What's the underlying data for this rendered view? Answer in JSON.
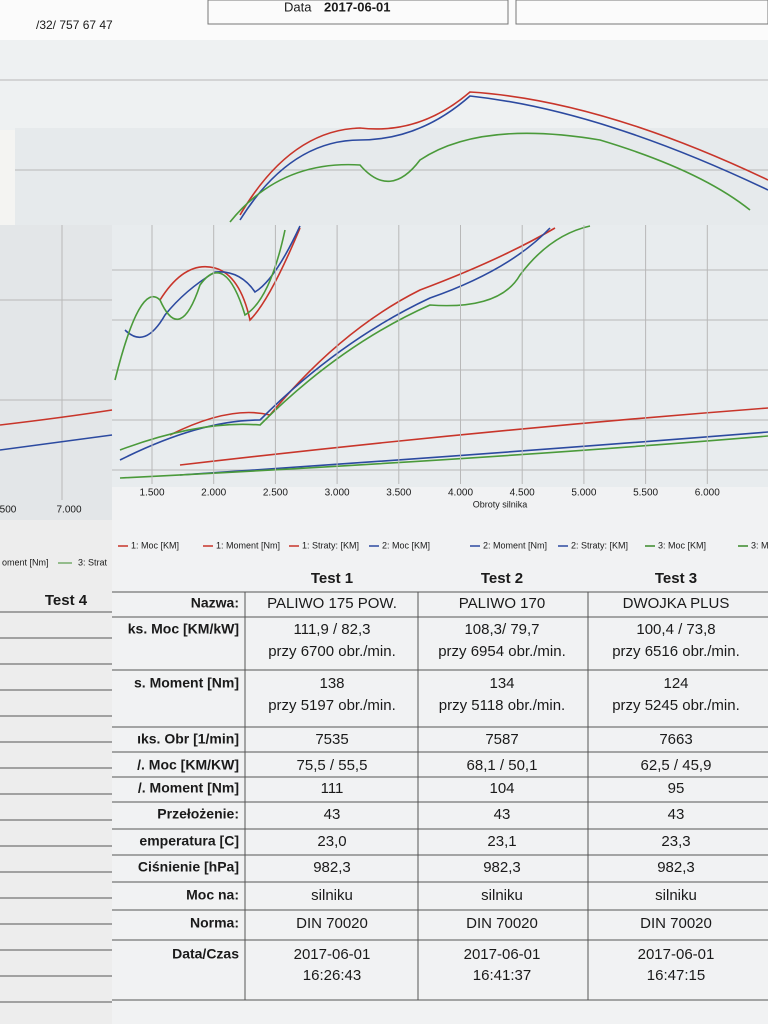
{
  "header": {
    "phone": "/32/ 757 67 47",
    "date_label": "Data",
    "date": "2017-06-01"
  },
  "chart": {
    "x_ticks": [
      "1.500",
      "2.000",
      "2.500",
      "3.000",
      "3.500",
      "4.000",
      "4.500",
      "5.000",
      "5.500",
      "6.000"
    ],
    "left_ticks": [
      "500",
      "7.000"
    ],
    "x_label": "Obroty silnika",
    "legend": [
      {
        "text": "1: Moc [KM]",
        "color": "#c8352a"
      },
      {
        "text": "1: Moment [Nm]",
        "color": "#c8352a"
      },
      {
        "text": "1: Straty: [KM]",
        "color": "#c8352a"
      },
      {
        "text": "2: Moc [KM]",
        "color": "#2c4aa0"
      },
      {
        "text": "2: Moment [Nm]",
        "color": "#2c4aa0"
      },
      {
        "text": "2: Straty: [KM]",
        "color": "#2c4aa0"
      },
      {
        "text": "3: Moc [KM]",
        "color": "#3a8a2a"
      },
      {
        "text": "3: M",
        "color": "#3a8a2a"
      }
    ],
    "left_legend": [
      "oment [Nm]",
      "3: Strat"
    ]
  },
  "table": {
    "left_column": "Test 4",
    "columns": [
      "Test 1",
      "Test 2",
      "Test 3"
    ],
    "rows": [
      {
        "label": "Nazwa:",
        "cells": [
          [
            "PALIWO 175 POW."
          ],
          [
            "PALIWO 170"
          ],
          [
            "DWOJKA PLUS"
          ]
        ]
      },
      {
        "label": "ks. Moc [KM/kW]",
        "cells": [
          [
            "111,9 / 82,3",
            "przy 6700 obr./min."
          ],
          [
            "108,3/ 79,7",
            "przy 6954 obr./min."
          ],
          [
            "100,4 / 73,8",
            "przy 6516 obr./min."
          ]
        ]
      },
      {
        "label": "s. Moment [Nm]",
        "cells": [
          [
            "138",
            "przy 5197 obr./min."
          ],
          [
            "134",
            "przy 5118 obr./min."
          ],
          [
            "124",
            "przy 5245 obr./min."
          ]
        ]
      },
      {
        "label": "ıks. Obr [1/min]",
        "cells": [
          [
            "7535"
          ],
          [
            "7587"
          ],
          [
            "7663"
          ]
        ]
      },
      {
        "label": "/. Moc [KM/KW]",
        "cells": [
          [
            "75,5 / 55,5"
          ],
          [
            "68,1 / 50,1"
          ],
          [
            "62,5 / 45,9"
          ]
        ]
      },
      {
        "label": "/. Moment [Nm]",
        "cells": [
          [
            "111"
          ],
          [
            "104"
          ],
          [
            "95"
          ]
        ]
      },
      {
        "label": "Przełożenie:",
        "cells": [
          [
            "43"
          ],
          [
            "43"
          ],
          [
            "43"
          ]
        ]
      },
      {
        "label": "emperatura [C]",
        "cells": [
          [
            "23,0"
          ],
          [
            "23,1"
          ],
          [
            "23,3"
          ]
        ]
      },
      {
        "label": "Ciśnienie [hPa]",
        "cells": [
          [
            "982,3"
          ],
          [
            "982,3"
          ],
          [
            "982,3"
          ]
        ]
      },
      {
        "label": "Moc na:",
        "cells": [
          [
            "silniku"
          ],
          [
            "silniku"
          ],
          [
            "silniku"
          ]
        ]
      },
      {
        "label": "Norma:",
        "cells": [
          [
            "DIN 70020"
          ],
          [
            "DIN 70020"
          ],
          [
            "DIN 70020"
          ]
        ]
      },
      {
        "label": "Data/Czas",
        "cells": [
          [
            "2017-06-01",
            "16:26:43"
          ],
          [
            "2017-06-01",
            "16:41:37"
          ],
          [
            "2017-06-01",
            "16:47:15"
          ]
        ]
      }
    ]
  }
}
